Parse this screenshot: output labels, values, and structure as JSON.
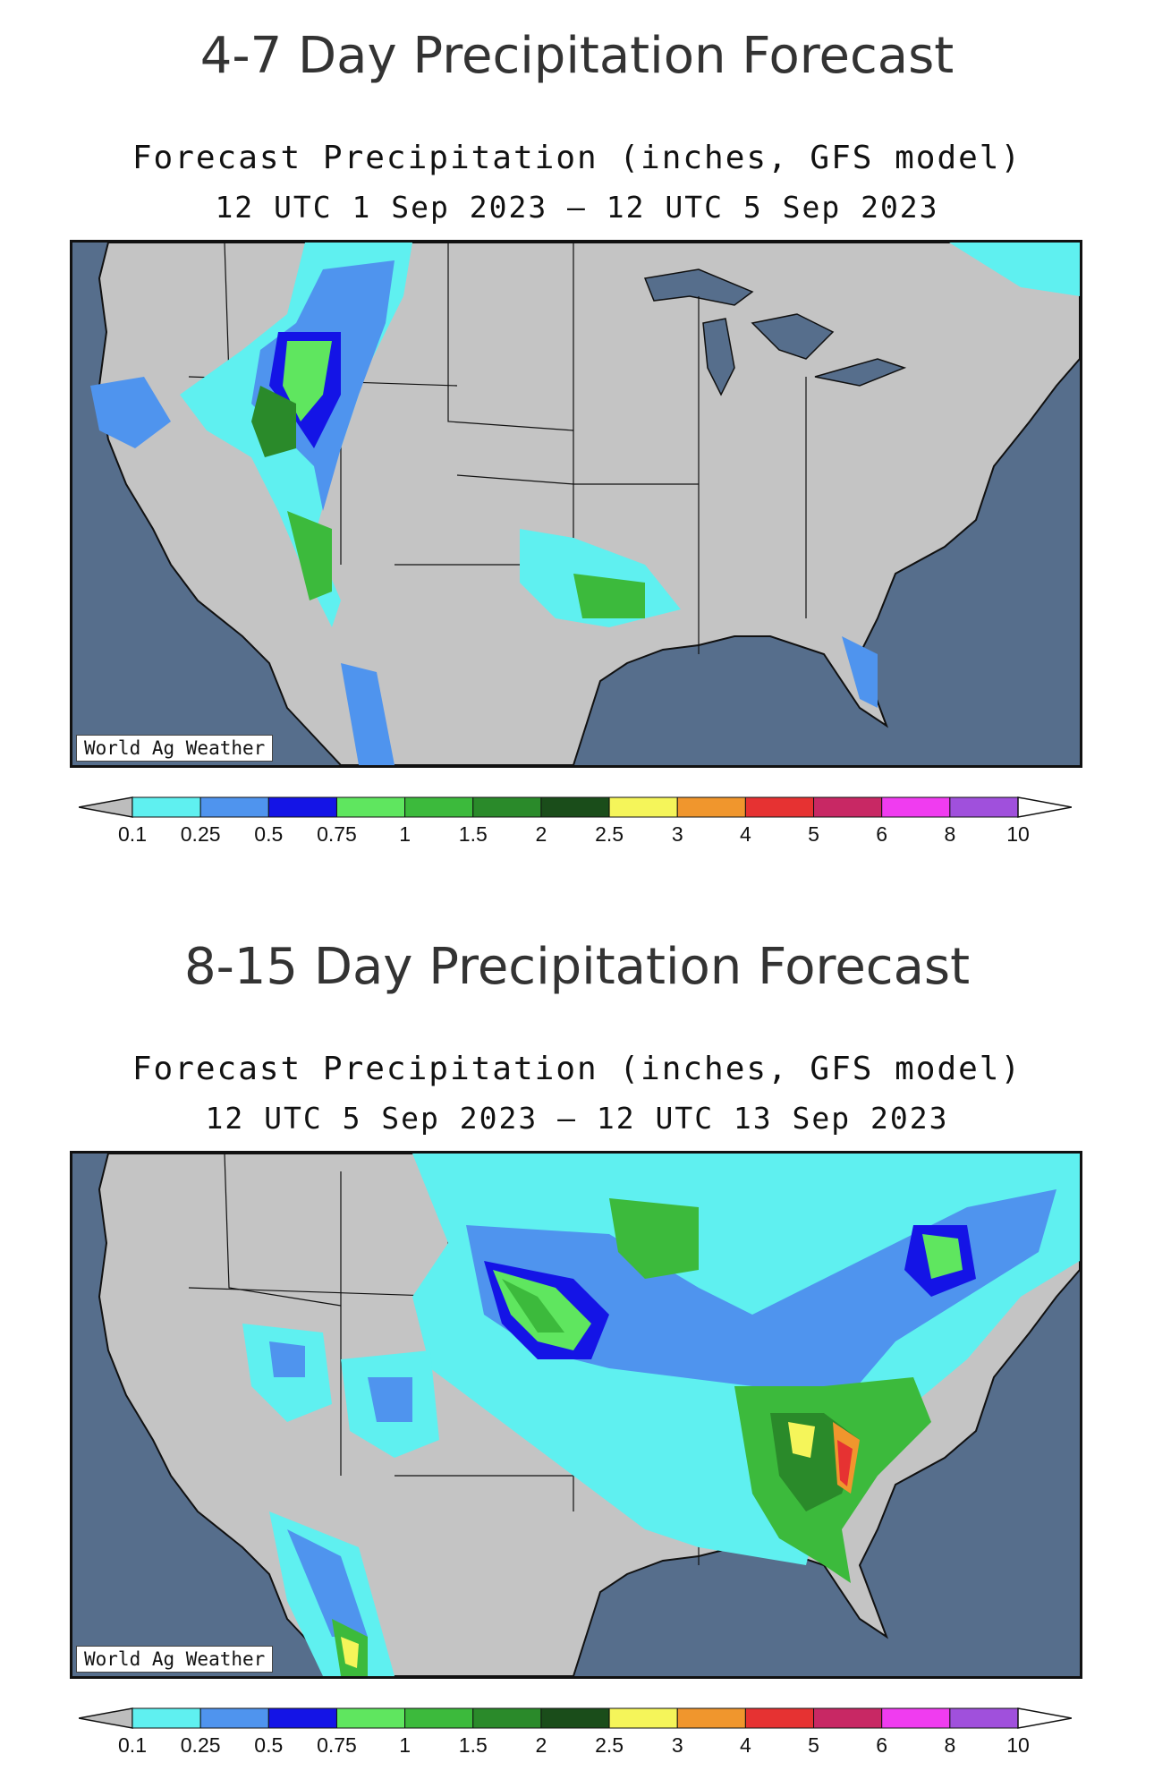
{
  "panels": [
    {
      "heading": "4-7 Day Precipitation Forecast",
      "subtitle": "Forecast Precipitation (inches, GFS model)",
      "period": "12 UTC 1 Sep 2023 – 12 UTC 5 Sep 2023",
      "credit": "World Ag Weather"
    },
    {
      "heading": "8-15 Day Precipitation Forecast",
      "subtitle": "Forecast Precipitation (inches, GFS model)",
      "period": "12 UTC 5 Sep 2023 – 12 UTC 13 Sep 2023",
      "credit": "World Ag Weather"
    }
  ],
  "legend": {
    "ticks": [
      "0.1",
      "0.25",
      "0.5",
      "0.75",
      "1",
      "1.5",
      "2",
      "2.5",
      "3",
      "4",
      "5",
      "6",
      "8",
      "10"
    ],
    "colors": [
      "#bdbdbd",
      "#5ff0f0",
      "#4f94ee",
      "#1414e6",
      "#5fe65f",
      "#3cba3c",
      "#2a8a2a",
      "#1a4d1a",
      "#f5f55a",
      "#f0962d",
      "#e63232",
      "#c82864",
      "#f03cf0",
      "#a050dc",
      "#ffffff"
    ]
  },
  "map_colors": {
    "land": "#c4c4c4",
    "water": "#566e8c",
    "border": "#111111"
  }
}
